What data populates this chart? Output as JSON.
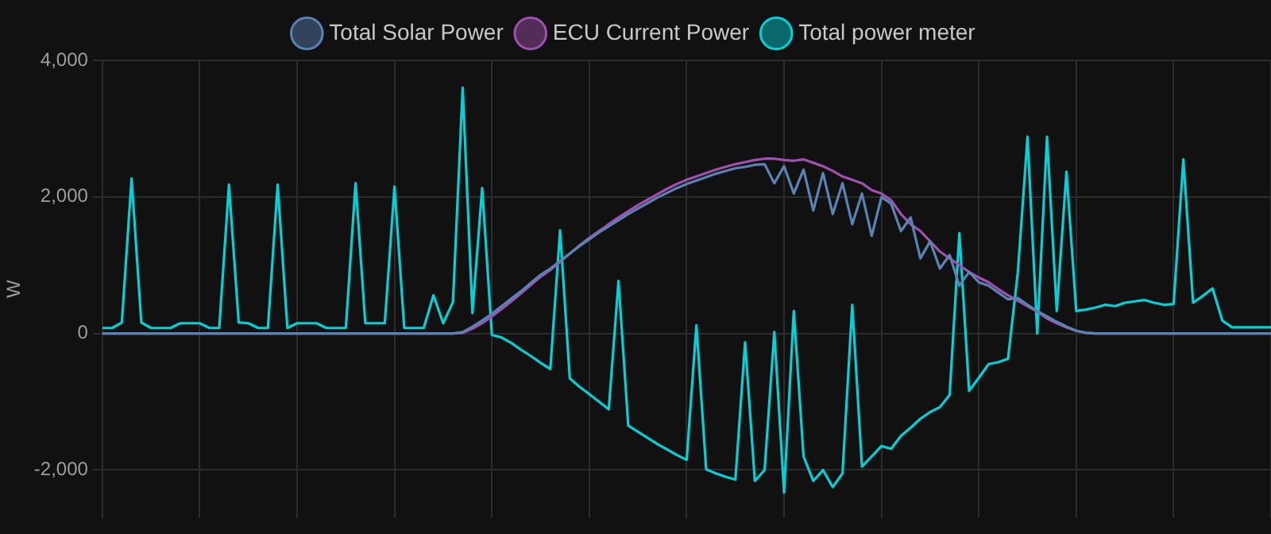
{
  "chart_data": {
    "type": "line",
    "ylabel": "W",
    "categories": [
      null,
      null,
      null,
      null,
      null,
      null,
      null,
      null,
      null,
      null,
      null,
      null,
      null,
      null,
      null,
      null,
      null,
      null,
      null,
      null,
      null,
      null,
      null,
      null,
      null,
      null,
      null,
      null,
      null,
      null,
      null,
      null,
      null,
      null,
      null,
      null,
      null,
      null,
      null,
      null,
      null,
      null,
      null,
      null,
      null,
      null,
      null,
      null,
      null,
      null,
      null,
      null,
      null,
      null,
      null,
      null,
      null,
      null,
      null,
      null,
      null,
      null,
      null,
      null,
      null,
      null,
      null,
      null,
      null,
      null,
      null,
      null,
      null,
      null,
      null,
      null,
      null,
      null,
      null,
      null,
      null,
      null,
      null,
      null,
      null,
      null,
      null,
      null,
      null,
      null,
      null,
      null,
      null,
      null,
      null,
      null,
      null,
      null,
      null,
      null,
      null,
      null,
      null,
      null,
      null,
      null,
      null,
      null,
      null,
      null,
      null,
      null,
      null,
      null,
      null,
      null,
      null,
      null,
      null,
      null,
      null
    ],
    "ylim": [
      -2700,
      4000
    ],
    "yticks": [
      {
        "value": -2000,
        "label": "-2,000"
      },
      {
        "value": 0,
        "label": "0"
      },
      {
        "value": 2000,
        "label": "2,000"
      },
      {
        "value": 4000,
        "label": "4,000"
      }
    ],
    "grid": true,
    "legend": "top",
    "marker": "none",
    "line_style": "solid",
    "tick_labels": "y",
    "series": [
      {
        "name": "Total Solar Power",
        "color": "#5a83b3",
        "values": [
          0,
          0,
          0,
          0,
          0,
          0,
          0,
          0,
          0,
          0,
          0,
          0,
          0,
          0,
          0,
          0,
          0,
          0,
          0,
          0,
          0,
          0,
          0,
          0,
          0,
          0,
          0,
          0,
          0,
          0,
          0,
          0,
          0,
          0,
          0,
          0,
          0,
          20,
          100,
          190,
          290,
          400,
          510,
          620,
          740,
          860,
          950,
          1060,
          1170,
          1280,
          1380,
          1480,
          1570,
          1660,
          1750,
          1830,
          1910,
          1990,
          2060,
          2130,
          2190,
          2240,
          2290,
          2340,
          2380,
          2420,
          2440,
          2470,
          2480,
          2200,
          2450,
          2050,
          2400,
          1800,
          2350,
          1750,
          2200,
          1600,
          2050,
          1430,
          2000,
          1900,
          1500,
          1700,
          1100,
          1350,
          950,
          1150,
          700,
          900,
          750,
          700,
          600,
          500,
          520,
          420,
          330,
          250,
          170,
          100,
          40,
          10,
          0,
          0,
          0,
          0,
          0,
          0,
          0,
          0,
          0,
          0,
          0,
          0,
          0,
          0,
          0,
          0,
          0,
          0,
          0
        ]
      },
      {
        "name": "ECU Current Power",
        "color": "#a050b0",
        "values": [
          0,
          0,
          0,
          0,
          0,
          0,
          0,
          0,
          0,
          0,
          0,
          0,
          0,
          0,
          0,
          0,
          0,
          0,
          0,
          0,
          0,
          0,
          0,
          0,
          0,
          0,
          0,
          0,
          0,
          0,
          0,
          0,
          0,
          0,
          0,
          0,
          0,
          10,
          70,
          150,
          250,
          360,
          470,
          590,
          710,
          830,
          930,
          1050,
          1170,
          1290,
          1400,
          1500,
          1600,
          1700,
          1790,
          1880,
          1960,
          2040,
          2120,
          2190,
          2250,
          2300,
          2350,
          2400,
          2440,
          2480,
          2510,
          2540,
          2560,
          2560,
          2540,
          2530,
          2550,
          2500,
          2450,
          2380,
          2300,
          2250,
          2200,
          2100,
          2050,
          1950,
          1750,
          1600,
          1500,
          1350,
          1200,
          1100,
          1000,
          900,
          820,
          750,
          650,
          560,
          480,
          400,
          320,
          220,
          150,
          90,
          40,
          10,
          0,
          0,
          0,
          0,
          0,
          0,
          0,
          0,
          0,
          0,
          0,
          0,
          0,
          0,
          0,
          0,
          0,
          0,
          0
        ]
      },
      {
        "name": "Total power meter",
        "color": "#00d2d8",
        "values": [
          80,
          80,
          160,
          2270,
          160,
          80,
          80,
          80,
          150,
          150,
          150,
          80,
          80,
          2180,
          160,
          150,
          80,
          80,
          2180,
          80,
          150,
          150,
          150,
          80,
          80,
          80,
          2200,
          150,
          150,
          150,
          2150,
          80,
          80,
          80,
          560,
          150,
          460,
          3600,
          300,
          2130,
          -20,
          -60,
          -140,
          -240,
          -330,
          -430,
          -520,
          1510,
          -660,
          -780,
          -890,
          -1000,
          -1110,
          770,
          -1350,
          -1440,
          -1530,
          -1620,
          -1700,
          -1780,
          -1850,
          120,
          -1990,
          -2050,
          -2100,
          -2140,
          -130,
          -2160,
          -2000,
          20,
          -2330,
          330,
          -1800,
          -2160,
          -2000,
          -2250,
          -2050,
          420,
          -1950,
          -1800,
          -1650,
          -1690,
          -1500,
          -1380,
          -1250,
          -1150,
          -1080,
          -900,
          1470,
          -840,
          -650,
          -450,
          -420,
          -370,
          890,
          2880,
          0,
          2880,
          330,
          2370,
          330,
          350,
          380,
          420,
          400,
          450,
          470,
          490,
          450,
          420,
          430,
          2550,
          450,
          550,
          660,
          190,
          90,
          90,
          90,
          90,
          90
        ]
      }
    ]
  }
}
